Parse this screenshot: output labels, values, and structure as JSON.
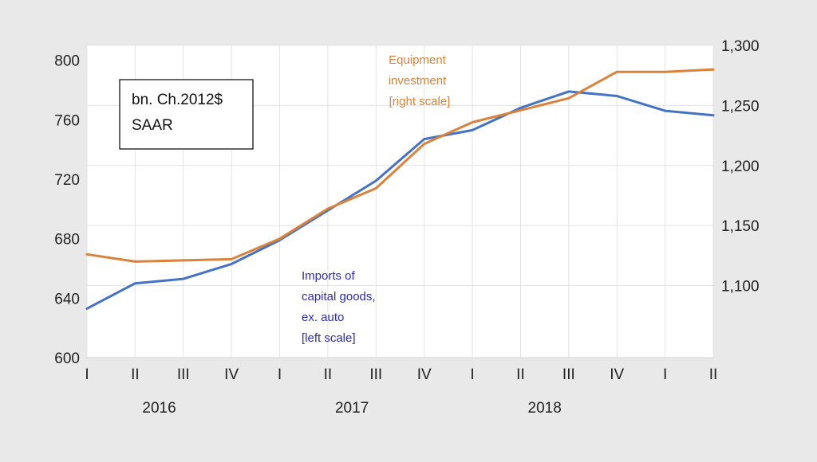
{
  "chart_data": {
    "type": "line",
    "categories": [
      "I",
      "II",
      "III",
      "IV",
      "I",
      "II",
      "III",
      "IV",
      "I",
      "II",
      "III",
      "IV",
      "I",
      "II"
    ],
    "year_labels": [
      "2016",
      "2017",
      "2018"
    ],
    "y_left": {
      "ticks": [
        "600",
        "640",
        "680",
        "720",
        "760",
        "800"
      ],
      "range": [
        600,
        810
      ]
    },
    "y_right": {
      "ticks": [
        "1,100",
        "1,150",
        "1,200",
        "1,250",
        "1,300"
      ],
      "range": [
        1040,
        1300
      ]
    },
    "series": [
      {
        "axis": "left",
        "color": "#4472c4",
        "values": [
          633,
          650,
          653,
          663,
          679,
          699,
          719,
          747,
          753,
          768,
          779,
          776,
          766,
          763
        ]
      },
      {
        "axis": "right",
        "color": "#d9823b",
        "values": [
          1126,
          1120,
          1121,
          1122,
          1139,
          1164,
          1181,
          1218,
          1236,
          1246,
          1256,
          1278,
          1278,
          1280
        ]
      }
    ],
    "units_box": [
      "bn. Ch.2012$",
      "SAAR"
    ],
    "annotations": {
      "equipment": [
        "Equipment",
        "investment",
        "[right scale]"
      ],
      "imports": [
        "Imports of",
        "capital goods,",
        "ex. auto",
        "[left scale]"
      ]
    },
    "grid": true
  }
}
